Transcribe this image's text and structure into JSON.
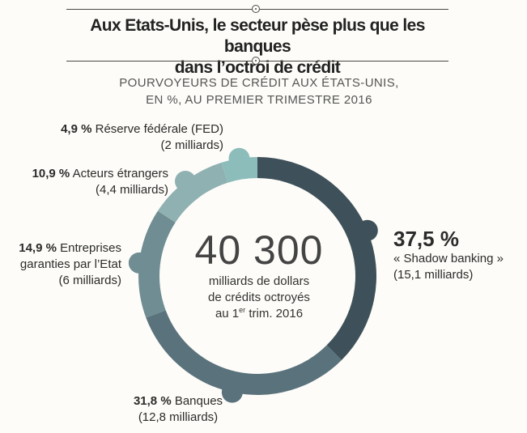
{
  "header": {
    "title_line1": "Aux Etats-Unis, le secteur pèse plus que les banques",
    "title_line2": "dans l’octroi de crédit",
    "subtitle_line1": "POURVOYEURS DE CRÉDIT AUX ÉTATS-UNIS,",
    "subtitle_line2": "EN %, AU PREMIER TRIMESTRE 2016"
  },
  "center": {
    "total": "40 300",
    "line1": "milliards de dollars",
    "line2": "de crédits octroyés",
    "line3_pre": "au 1",
    "line3_sup": "er",
    "line3_post": " trim. 2016"
  },
  "labels": {
    "fed_pct": "4,9 %",
    "fed_name": "Réserve fédérale (FED)",
    "fed_amount": "(2 milliards)",
    "foreign_pct": "10,9 %",
    "foreign_name": "Acteurs étrangers",
    "foreign_amount": "(4,4 milliards)",
    "gse_pct": "14,9 %",
    "gse_name_1": "Entreprises",
    "gse_name_2": "garanties par l’Etat",
    "gse_amount": "(6 milliards)",
    "shadow_pct": "37,5 %",
    "shadow_name": "« Shadow banking »",
    "shadow_amount": "(15,1 milliards)",
    "banks_pct": "31,8 %",
    "banks_name": "Banques",
    "banks_amount": "(12,8 milliards)"
  },
  "chart_data": {
    "type": "pie",
    "donut": true,
    "categories": [
      "« Shadow banking »",
      "Banques",
      "Entreprises garanties par l’Etat",
      "Acteurs étrangers",
      "Réserve fédérale (FED)"
    ],
    "values": [
      37.5,
      31.8,
      14.9,
      10.9,
      4.9
    ],
    "amounts_billion": [
      15.1,
      12.8,
      6,
      4.4,
      2
    ],
    "colors": [
      "#3e5059",
      "#5a727c",
      "#6f8d92",
      "#8fb1b1",
      "#8cbdba"
    ],
    "center_total": "40 300",
    "title": "Aux Etats-Unis, le secteur pèse plus que les banques dans l’octroi de crédit"
  }
}
